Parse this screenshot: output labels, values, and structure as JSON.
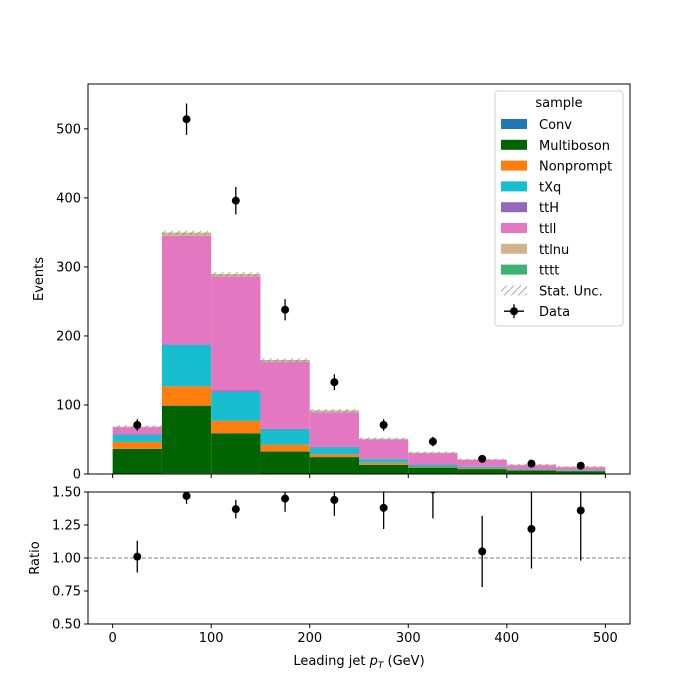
{
  "chart_data": [
    {
      "type": "bar",
      "stacked": true,
      "bins": [
        [
          0,
          50
        ],
        [
          50,
          100
        ],
        [
          100,
          150
        ],
        [
          150,
          200
        ],
        [
          200,
          250
        ],
        [
          250,
          300
        ],
        [
          300,
          350
        ],
        [
          350,
          400
        ],
        [
          400,
          450
        ],
        [
          450,
          500
        ]
      ],
      "bin_centers": [
        25,
        75,
        125,
        175,
        225,
        275,
        325,
        375,
        425,
        475
      ],
      "series": [
        {
          "name": "Conv",
          "color": "#1f77b4",
          "values": [
            0.5,
            1,
            1,
            0.5,
            0.5,
            0.3,
            0.2,
            0.1,
            0.1,
            0.1
          ]
        },
        {
          "name": "Multiboson",
          "color": "#006400",
          "values": [
            36,
            98,
            58,
            32,
            24,
            13,
            9,
            7,
            5,
            4
          ]
        },
        {
          "name": "Nonprompt",
          "color": "#ff7f0e",
          "values": [
            10,
            28,
            18,
            10,
            4,
            3,
            1,
            1,
            0.5,
            0.5
          ]
        },
        {
          "name": "tXq",
          "color": "#17becf",
          "values": [
            10,
            60,
            42,
            22,
            10,
            5,
            3,
            2,
            1,
            1
          ]
        },
        {
          "name": "ttH",
          "color": "#9467bd",
          "values": [
            1,
            1,
            2,
            1,
            1,
            0.5,
            0.5,
            0.3,
            0.2,
            0.2
          ]
        },
        {
          "name": "ttll",
          "color": "#e377c2",
          "values": [
            10,
            157,
            165,
            97,
            50,
            28,
            16,
            10,
            6,
            4
          ]
        },
        {
          "name": "ttlnu",
          "color": "#d2b48c",
          "values": [
            1,
            4,
            3,
            2,
            2,
            1,
            1,
            0.5,
            0.5,
            0.5
          ]
        },
        {
          "name": "tttt",
          "color": "#3cb371",
          "values": [
            0.2,
            0.5,
            0.5,
            0.5,
            0.5,
            0.3,
            0.3,
            0.2,
            0.2,
            0.2
          ]
        }
      ],
      "stat_unc": {
        "name": "Stat. Unc.",
        "values": [
          2,
          3,
          3,
          2.5,
          2,
          1.8,
          1.5,
          1.2,
          1,
          1
        ]
      },
      "data": {
        "name": "Data",
        "values": [
          71,
          514,
          396,
          238,
          133,
          71,
          47,
          22,
          15,
          12
        ],
        "errors": [
          8.4,
          22.7,
          19.9,
          15.4,
          11.5,
          8.4,
          6.9,
          4.7,
          3.9,
          3.5
        ]
      },
      "legend_title": "sample",
      "legend_position": "top-right",
      "ylabel": "Events",
      "ylim": [
        0,
        565
      ],
      "yticks": [
        0,
        100,
        200,
        300,
        400,
        500
      ],
      "xlim": [
        -25,
        525
      ]
    },
    {
      "type": "scatter",
      "x": [
        25,
        75,
        125,
        175,
        225,
        275,
        325,
        375,
        425,
        475
      ],
      "y": [
        1.01,
        1.47,
        1.37,
        1.45,
        1.44,
        1.38,
        1.52,
        1.05,
        1.22,
        1.36
      ],
      "yerr": [
        0.12,
        0.06,
        0.07,
        0.1,
        0.12,
        0.16,
        0.22,
        0.27,
        0.3,
        0.38
      ],
      "reference_line": 1.0,
      "xlabel": "Leading jet  p_T (GeV)",
      "xlabel_plain": "Leading jet  ",
      "xlabel_math_base": "p",
      "xlabel_math_sub": "T",
      "xlabel_units": " (GeV)",
      "ylabel": "Ratio",
      "ylim": [
        0.5,
        1.5
      ],
      "yticks": [
        "0.50",
        "0.75",
        "1.00",
        "1.25",
        "1.50"
      ],
      "xticks": [
        0,
        100,
        200,
        300,
        400,
        500
      ],
      "xlim": [
        -25,
        525
      ]
    }
  ]
}
